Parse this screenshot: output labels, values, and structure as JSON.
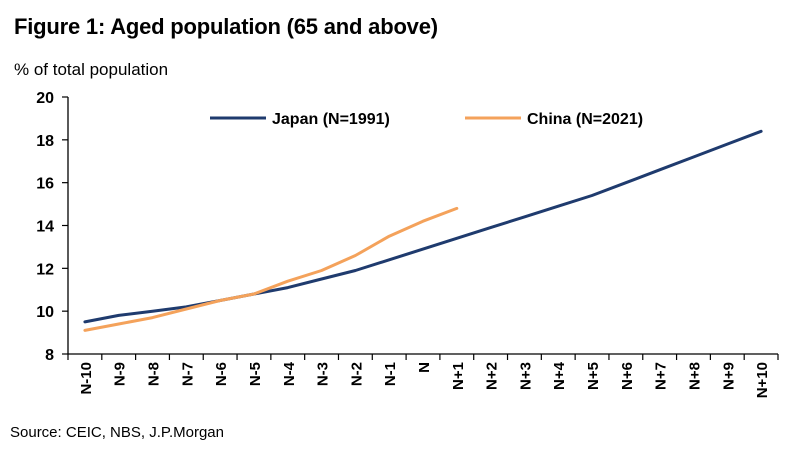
{
  "figure": {
    "title": "Figure 1: Aged population (65 and above)",
    "unit_label": "% of total population",
    "source": "Source: CEIC, NBS, J.P.Morgan"
  },
  "chart_data": {
    "type": "line",
    "title": "Figure 1: Aged population (65 and above)",
    "ylabel": "% of total population",
    "xlabel": "",
    "ylim": [
      8,
      20
    ],
    "yticks": [
      8,
      10,
      12,
      14,
      16,
      18,
      20
    ],
    "categories": [
      "N-10",
      "N-9",
      "N-8",
      "N-7",
      "N-6",
      "N-5",
      "N-4",
      "N-3",
      "N-2",
      "N-1",
      "N",
      "N+1",
      "N+2",
      "N+3",
      "N+4",
      "N+5",
      "N+6",
      "N+7",
      "N+8",
      "N+9",
      "N+10"
    ],
    "legend_position": "top",
    "series": [
      {
        "name": "Japan (N=1991)",
        "color": "#1f3b6e",
        "values": [
          9.5,
          9.8,
          10.0,
          10.2,
          10.5,
          10.8,
          11.1,
          11.5,
          11.9,
          12.4,
          12.9,
          13.4,
          13.9,
          14.4,
          14.9,
          15.4,
          16.0,
          16.6,
          17.2,
          17.8,
          18.4
        ]
      },
      {
        "name": "China (N=2021)",
        "color": "#f4a25b",
        "values": [
          9.1,
          9.4,
          9.7,
          10.1,
          10.5,
          10.8,
          11.4,
          11.9,
          12.6,
          13.5,
          14.2,
          14.8,
          null,
          null,
          null,
          null,
          null,
          null,
          null,
          null,
          null
        ]
      }
    ]
  }
}
